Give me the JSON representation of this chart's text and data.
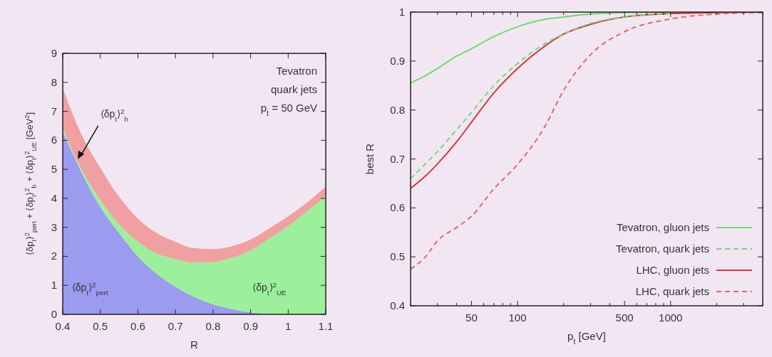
{
  "chart_data": [
    {
      "type": "area",
      "stacked": true,
      "xlabel": "R",
      "ylabel": "⟨δp$_{t}$⟩$^{2}$$_{pert}$ + ⟨δp$_{t}$⟩$^{2}$$_{h}$ + ⟨δp$_{t}$⟩$^{2}$$_{UE}$ [GeV$^{2}$]",
      "x": [
        0.4,
        0.45,
        0.5,
        0.55,
        0.6,
        0.65,
        0.7,
        0.75,
        0.8,
        0.85,
        0.9,
        0.95,
        1.0,
        1.05,
        1.1
      ],
      "series": [
        {
          "name": "⟨δp$_{t}$⟩$^{2}$$_{pert}$",
          "color": "#9b9bf0",
          "values": [
            6.3,
            4.9,
            3.7,
            2.8,
            2.0,
            1.4,
            0.95,
            0.6,
            0.35,
            0.18,
            0.07,
            0.02,
            0,
            0,
            0
          ]
        },
        {
          "name": "⟨δp$_{t}$⟩$^{2}$$_{UE}$",
          "color": "#9cf09c",
          "values": [
            0.1,
            0.1,
            0.25,
            0.3,
            0.5,
            0.7,
            0.95,
            1.18,
            1.45,
            1.77,
            2.13,
            2.6,
            3.05,
            3.55,
            4.1
          ]
        },
        {
          "name": "⟨δp$_{t}$⟩$^{2}$$_{h}$",
          "color": "#f0a0a0",
          "values": [
            1.4,
            1.2,
            1.1,
            0.95,
            0.8,
            0.7,
            0.6,
            0.5,
            0.45,
            0.4,
            0.38,
            0.35,
            0.33,
            0.3,
            0.3
          ]
        }
      ],
      "xlim": [
        0.4,
        1.1
      ],
      "xticks": [
        0.4,
        0.5,
        0.6,
        0.7,
        0.8,
        0.9,
        1,
        1.1
      ],
      "ylim": [
        0,
        9
      ],
      "yticks": [
        0,
        1,
        2,
        3,
        4,
        5,
        6,
        7,
        8,
        9
      ],
      "annotations": [
        "Tevatron",
        "quark jets",
        "p$_{t}$ = 50 GeV"
      ]
    },
    {
      "type": "line",
      "xlabel": "p$_{t}$ [GeV]",
      "ylabel": "best R",
      "log": "x",
      "legend": "bottom right",
      "x": [
        20,
        25,
        30,
        40,
        50,
        70,
        100,
        150,
        200,
        300,
        500,
        1000,
        2000,
        4000
      ],
      "series": [
        {
          "name": "Tevatron, gluon jets",
          "color": "#6edc6e",
          "line_style": "solid",
          "values": [
            0.855,
            0.87,
            0.885,
            0.91,
            0.925,
            0.95,
            0.97,
            0.985,
            0.99,
            0.996,
            0.999,
            1,
            null,
            null
          ]
        },
        {
          "name": "Tevatron, quark jets",
          "color": "#6edc6e",
          "line_style": "dashed",
          "values": [
            0.66,
            0.69,
            0.715,
            0.76,
            0.795,
            0.85,
            0.895,
            0.935,
            0.955,
            0.977,
            0.99,
            0.997,
            null,
            null
          ]
        },
        {
          "name": "LHC, gluon jets",
          "color": "#d83838",
          "line_style": "solid",
          "values": [
            0.64,
            0.665,
            0.69,
            0.735,
            0.775,
            0.835,
            0.885,
            0.93,
            0.955,
            0.975,
            0.99,
            0.997,
            0.999,
            1
          ]
        },
        {
          "name": "LHC, quark jets",
          "color": "#e06a6a",
          "line_style": "dashed",
          "values": [
            0.475,
            0.5,
            0.533,
            0.56,
            0.583,
            0.639,
            0.689,
            0.765,
            0.84,
            0.913,
            0.96,
            0.986,
            0.996,
            0.999
          ]
        }
      ],
      "xlim": [
        20,
        4000
      ],
      "xticks": [
        {
          "value": 20,
          "label": null
        },
        {
          "value": 30,
          "label": null
        },
        {
          "value": 40,
          "label": null
        },
        50,
        {
          "value": 60,
          "label": null
        },
        {
          "value": 70,
          "label": null
        },
        {
          "value": 80,
          "label": null
        },
        {
          "value": 90,
          "label": null
        },
        100,
        {
          "value": 200,
          "label": null
        },
        {
          "value": 300,
          "label": null
        },
        {
          "value": 400,
          "label": null
        },
        500,
        {
          "value": 600,
          "label": null
        },
        {
          "value": 700,
          "label": null
        },
        {
          "value": 800,
          "label": null
        },
        {
          "value": 900,
          "label": null
        },
        1000,
        {
          "value": 2000,
          "label": null
        },
        {
          "value": 3000,
          "label": null
        },
        {
          "value": 4000,
          "label": null
        }
      ],
      "ylim": [
        0.4,
        1
      ],
      "yticks": [
        0.4,
        0.5,
        0.6,
        0.7,
        0.8,
        0.9,
        1
      ]
    }
  ]
}
